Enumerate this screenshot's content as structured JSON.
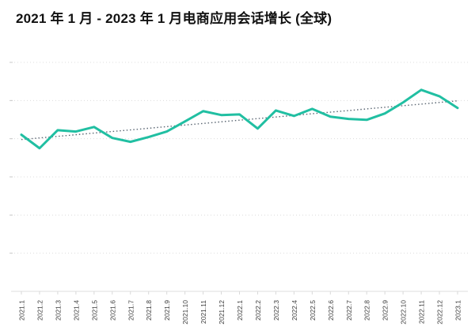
{
  "title": "2021 年 1 月 - 2023 年 1 月电商应用会话增长 (全球)",
  "colors": {
    "accent_line": "#21bfa2",
    "trend_line": "#5a6672",
    "gridline": "#dcdcdc",
    "axis": "#dedede",
    "tick": "#d9d9d9",
    "axis_label": "#3d3d3d",
    "title_text": "#111111",
    "background": "#ffffff"
  },
  "chart_data": {
    "type": "line",
    "title": "2021 年 1 月 - 2023 年 1 月电商应用会话增长 (全球)",
    "xlabel": "",
    "ylabel": "",
    "legend": "none",
    "y_axis_tick_labels_visible": false,
    "ylim": [
      0,
      100
    ],
    "gridlines": {
      "horizontal_count": 6,
      "style": "dotted"
    },
    "categories": [
      "2021.1",
      "2021.2",
      "2021.3",
      "2021.4",
      "2021.5",
      "2021.6",
      "2021.7",
      "2021.8",
      "2021.9",
      "2021.10",
      "2021.11",
      "2021.12",
      "2022.1",
      "2022.2",
      "2022.3",
      "2022.4",
      "2022.5",
      "2022.6",
      "2022.7",
      "2022.8",
      "2022.9",
      "2022.10",
      "2022.11",
      "2022.12",
      "2023.1"
    ],
    "series": [
      {
        "values": [
          68.4,
          62.5,
          70.4,
          69.8,
          71.8,
          67.0,
          65.3,
          67.4,
          69.8,
          74.2,
          78.7,
          77.0,
          77.3,
          71.1,
          79.0,
          76.6,
          79.7,
          76.3,
          75.3,
          74.9,
          77.7,
          82.5,
          88.0,
          85.2,
          80.1
        ]
      }
    ],
    "trendline": {
      "style": "dotted",
      "start_value": 66.3,
      "end_value": 83.2
    }
  }
}
